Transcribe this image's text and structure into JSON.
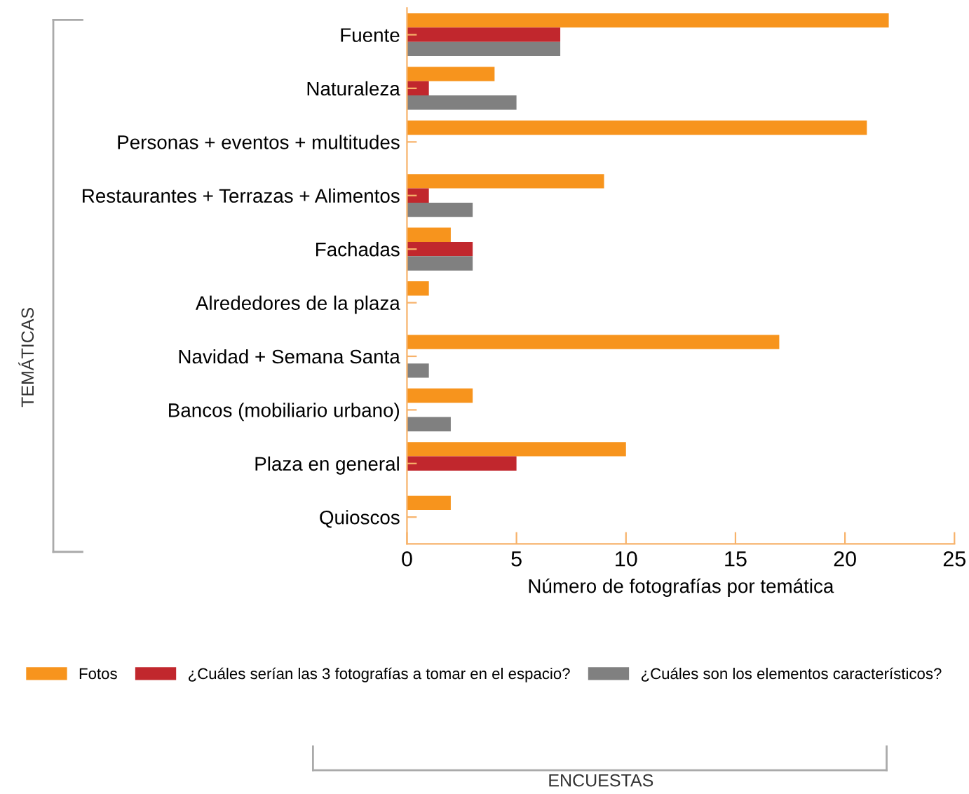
{
  "chart_data": {
    "type": "bar",
    "orientation": "horizontal",
    "categories": [
      "Fuente",
      "Naturaleza",
      "Personas + eventos + multitudes",
      "Restaurantes + Terrazas + Alimentos",
      "Fachadas",
      "Alrededores de la plaza",
      "Navidad + Semana Santa",
      "Bancos (mobiliario urbano)",
      "Plaza en general",
      "Quioscos"
    ],
    "series": [
      {
        "name": "Fotos",
        "color": "#f7941d",
        "values": [
          22,
          4,
          21,
          9,
          2,
          1,
          17,
          3,
          10,
          2
        ]
      },
      {
        "name": "¿Cuáles serían las 3 fotografías a tomar en el espacio?",
        "color": "#c1272d",
        "values": [
          7,
          1,
          0,
          1,
          3,
          0,
          0,
          0,
          5,
          0
        ]
      },
      {
        "name": "¿Cuáles son los elementos característicos?",
        "color": "#808080",
        "values": [
          7,
          5,
          0,
          3,
          3,
          0,
          1,
          2,
          0,
          0
        ]
      }
    ],
    "xlim": [
      0,
      25
    ],
    "xticks": [
      0,
      5,
      10,
      15,
      20,
      25
    ],
    "xlabel": "Número de fotografías por temática",
    "ylabel": "TEMÁTICAS",
    "annotations": [
      "ENCUESTAS"
    ],
    "grid": false,
    "legend": "bottom"
  }
}
